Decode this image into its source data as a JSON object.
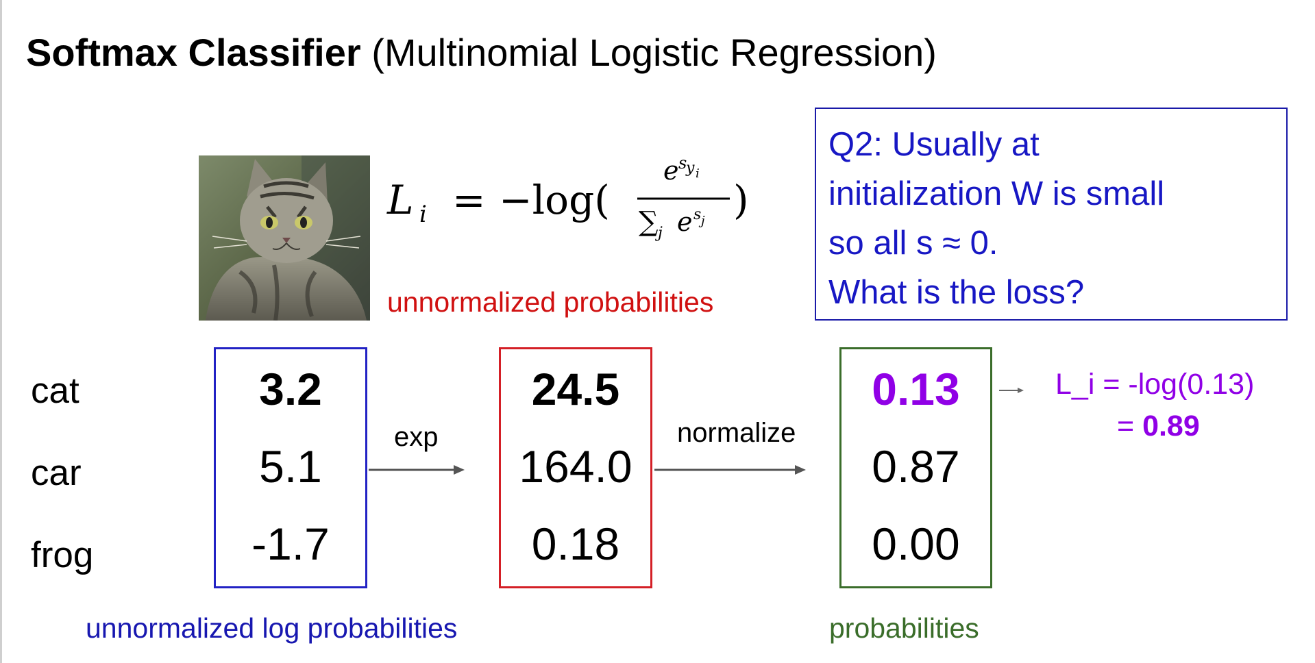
{
  "title": {
    "bold": "Softmax Classifier",
    "rest": " (Multinomial Logistic Regression)"
  },
  "formula": {
    "lhs": "L",
    "lhs_sub": "i",
    "equals": "=",
    "neg_log": "−log(",
    "num_base": "e",
    "num_exp": "s",
    "num_exp_sub": "y",
    "num_exp_sub2": "i",
    "den_sum": "∑",
    "den_sum_sub": "j",
    "den_base": "e",
    "den_exp": "s",
    "den_exp_sub": "j",
    "close": ")"
  },
  "unnormalized_probabilities_label": "unnormalized probabilities",
  "question": {
    "lines": [
      "Q2: Usually at",
      "initialization W is small",
      "so all s ≈ 0.",
      "What is the loss?"
    ]
  },
  "classes": [
    "cat",
    "car",
    "frog"
  ],
  "scores": [
    "3.2",
    "5.1",
    "-1.7"
  ],
  "exp_values": [
    "24.5",
    "164.0",
    "0.18"
  ],
  "probabilities": [
    "0.13",
    "0.87",
    "0.00"
  ],
  "ops": {
    "exp": "exp",
    "normalize": "normalize"
  },
  "loss": {
    "line1": "L_i = -log(0.13)",
    "line2_prefix": "= ",
    "line2_value": "0.89"
  },
  "captions": {
    "log_probs": "unnormalized log probabilities",
    "probs": "probabilities"
  },
  "colors": {
    "blue": "#2222c4",
    "red": "#d41f26",
    "green": "#3a6d2a",
    "purple": "#9000e6"
  }
}
